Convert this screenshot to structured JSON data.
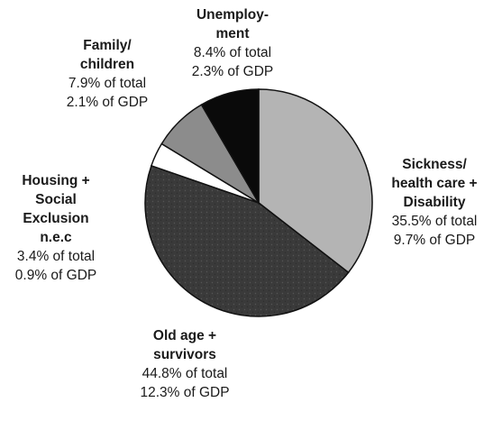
{
  "chart_data": {
    "type": "pie",
    "title": "",
    "start_angle_deg": 0,
    "direction": "clockwise",
    "slices": [
      {
        "label": "Sickness/\nhealth care +\nDisability",
        "share_text": "35.5% of total",
        "gdp_text": "9.7% of GDP",
        "value": 35.5,
        "gdp": 9.7,
        "color": "#b4b4b4",
        "pattern": "plain"
      },
      {
        "label": "Old age +\nsurvivors",
        "share_text": "44.8% of total",
        "gdp_text": "12.3% of GDP",
        "value": 44.8,
        "gdp": 12.3,
        "color": "#3a3a3a",
        "pattern": "speckled"
      },
      {
        "label": "Housing +\nSocial\nExclusion\nn.e.c",
        "share_text": "3.4% of total",
        "gdp_text": "0.9% of GDP",
        "value": 3.4,
        "gdp": 0.9,
        "color": "#ffffff",
        "pattern": "plain"
      },
      {
        "label": "Family/\nchildren",
        "share_text": "7.9% of total",
        "gdp_text": "2.1% of GDP",
        "value": 7.9,
        "gdp": 2.1,
        "color": "#8c8c8c",
        "pattern": "plain"
      },
      {
        "label": "Unemploy-\nment",
        "share_text": "8.4% of total",
        "gdp_text": "2.3% of GDP",
        "value": 8.4,
        "gdp": 2.3,
        "color": "#0a0a0a",
        "pattern": "plain"
      }
    ]
  }
}
